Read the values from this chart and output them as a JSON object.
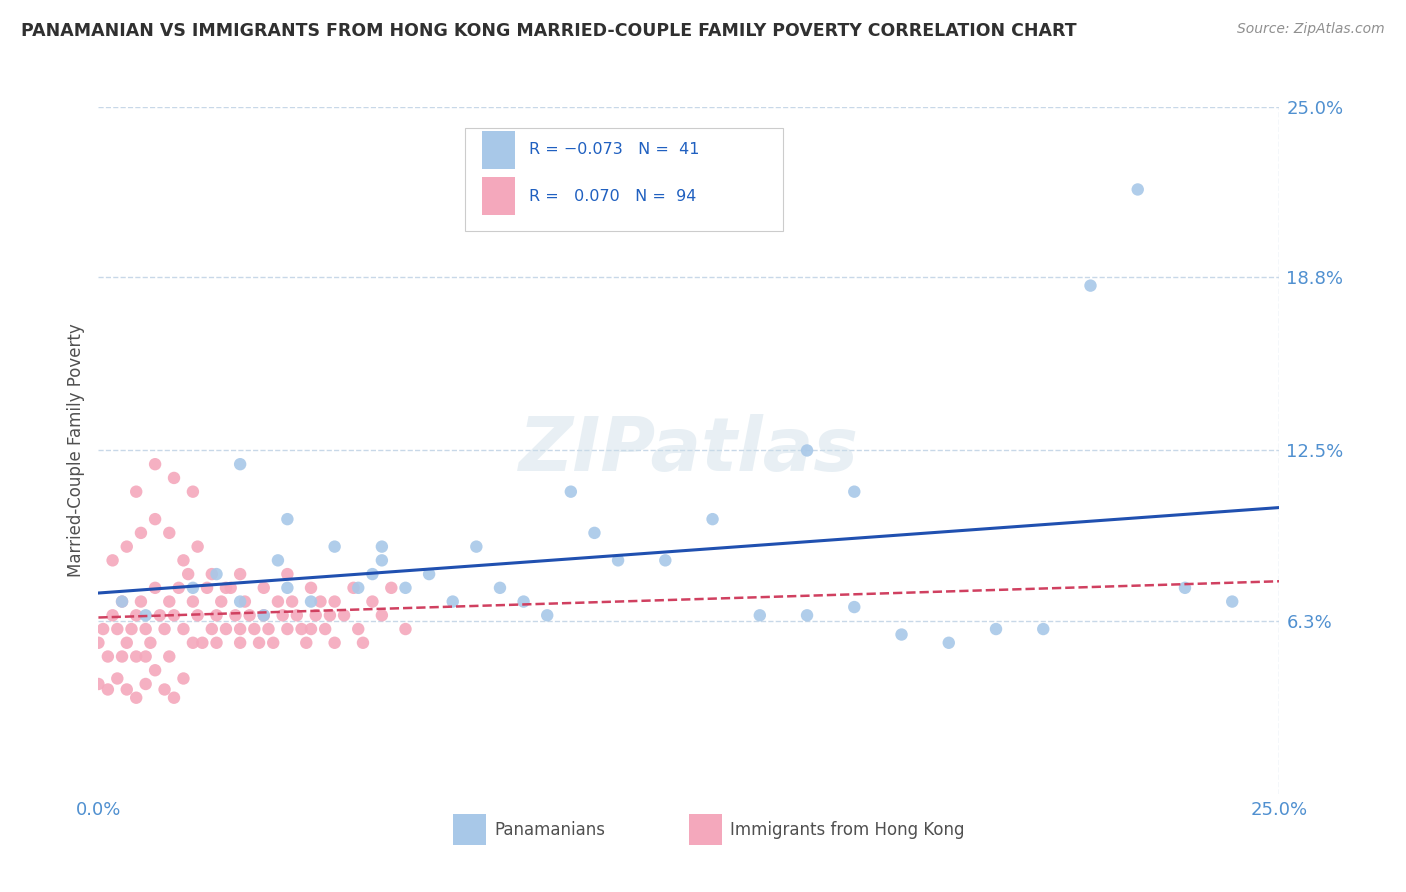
{
  "title": "PANAMANIAN VS IMMIGRANTS FROM HONG KONG MARRIED-COUPLE FAMILY POVERTY CORRELATION CHART",
  "source": "Source: ZipAtlas.com",
  "ylabel": "Married-Couple Family Poverty",
  "xlim": [
    0,
    0.25
  ],
  "ylim": [
    0,
    0.25
  ],
  "ytick_vals": [
    0.063,
    0.125,
    0.188,
    0.25
  ],
  "ytick_labels": [
    "6.3%",
    "12.5%",
    "18.8%",
    "25.0%"
  ],
  "blue_color": "#a8c8e8",
  "pink_color": "#f4a8bc",
  "trend_blue": "#2050b0",
  "trend_pink": "#d04060",
  "title_color": "#303030",
  "axis_label_color": "#505050",
  "tick_color": "#5090d0",
  "grid_color": "#c8d8e8",
  "background_color": "#ffffff",
  "blue_x": [
    0.005,
    0.01,
    0.02,
    0.025,
    0.03,
    0.035,
    0.038,
    0.04,
    0.045,
    0.05,
    0.055,
    0.058,
    0.06,
    0.065,
    0.07,
    0.075,
    0.08,
    0.085,
    0.09,
    0.095,
    0.1,
    0.105,
    0.11,
    0.12,
    0.13,
    0.14,
    0.15,
    0.16,
    0.17,
    0.18,
    0.19,
    0.2,
    0.21,
    0.22,
    0.23,
    0.24,
    0.15,
    0.16,
    0.03,
    0.04,
    0.06
  ],
  "blue_y": [
    0.07,
    0.065,
    0.075,
    0.08,
    0.07,
    0.065,
    0.085,
    0.075,
    0.07,
    0.09,
    0.075,
    0.08,
    0.085,
    0.075,
    0.08,
    0.07,
    0.09,
    0.075,
    0.07,
    0.065,
    0.11,
    0.095,
    0.085,
    0.085,
    0.1,
    0.065,
    0.065,
    0.068,
    0.058,
    0.055,
    0.06,
    0.06,
    0.185,
    0.22,
    0.075,
    0.07,
    0.125,
    0.11,
    0.12,
    0.1,
    0.09
  ],
  "pink_x": [
    0.0,
    0.001,
    0.002,
    0.003,
    0.004,
    0.005,
    0.005,
    0.006,
    0.007,
    0.008,
    0.008,
    0.009,
    0.01,
    0.01,
    0.011,
    0.012,
    0.013,
    0.014,
    0.015,
    0.015,
    0.016,
    0.017,
    0.018,
    0.019,
    0.02,
    0.02,
    0.021,
    0.022,
    0.023,
    0.024,
    0.025,
    0.025,
    0.026,
    0.027,
    0.028,
    0.029,
    0.03,
    0.03,
    0.031,
    0.032,
    0.033,
    0.034,
    0.035,
    0.035,
    0.036,
    0.037,
    0.038,
    0.039,
    0.04,
    0.04,
    0.041,
    0.042,
    0.043,
    0.044,
    0.045,
    0.045,
    0.046,
    0.047,
    0.048,
    0.049,
    0.05,
    0.05,
    0.052,
    0.054,
    0.055,
    0.056,
    0.058,
    0.06,
    0.062,
    0.065,
    0.003,
    0.006,
    0.009,
    0.012,
    0.015,
    0.018,
    0.021,
    0.024,
    0.027,
    0.03,
    0.0,
    0.002,
    0.004,
    0.006,
    0.008,
    0.01,
    0.012,
    0.014,
    0.016,
    0.018,
    0.008,
    0.012,
    0.016,
    0.02
  ],
  "pink_y": [
    0.055,
    0.06,
    0.05,
    0.065,
    0.06,
    0.07,
    0.05,
    0.055,
    0.06,
    0.065,
    0.05,
    0.07,
    0.06,
    0.05,
    0.055,
    0.075,
    0.065,
    0.06,
    0.07,
    0.05,
    0.065,
    0.075,
    0.06,
    0.08,
    0.07,
    0.055,
    0.065,
    0.055,
    0.075,
    0.06,
    0.065,
    0.055,
    0.07,
    0.06,
    0.075,
    0.065,
    0.06,
    0.055,
    0.07,
    0.065,
    0.06,
    0.055,
    0.075,
    0.065,
    0.06,
    0.055,
    0.07,
    0.065,
    0.06,
    0.08,
    0.07,
    0.065,
    0.06,
    0.055,
    0.06,
    0.075,
    0.065,
    0.07,
    0.06,
    0.065,
    0.055,
    0.07,
    0.065,
    0.075,
    0.06,
    0.055,
    0.07,
    0.065,
    0.075,
    0.06,
    0.085,
    0.09,
    0.095,
    0.1,
    0.095,
    0.085,
    0.09,
    0.08,
    0.075,
    0.08,
    0.04,
    0.038,
    0.042,
    0.038,
    0.035,
    0.04,
    0.045,
    0.038,
    0.035,
    0.042,
    0.11,
    0.12,
    0.115,
    0.11
  ]
}
